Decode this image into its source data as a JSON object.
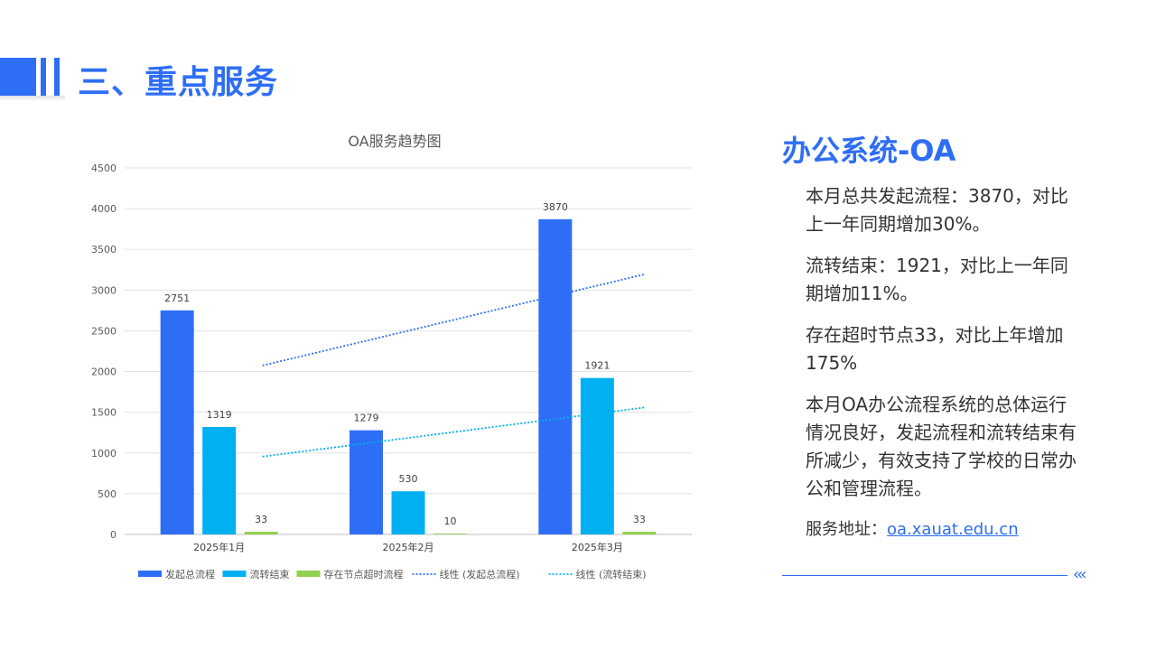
{
  "header": {
    "title": "三、重点服务"
  },
  "side": {
    "title": "办公系统-OA",
    "paragraphs": [
      "本月总共发起流程：3870，对比上一年同期增加30%。",
      "流转结束：1921，对比上一年同期增加11%。",
      "存在超时节点33，对比上年增加175%",
      "本月OA办公流程系统的总体运行情况良好，发起流程和流转结束有所减少，有效支持了学校的日常办公和管理流程。"
    ],
    "address_label": "服务地址：",
    "address_link": "oa.xauat.edu.cn",
    "footer_icon": "double-chevron-left-icon"
  },
  "chart_data": {
    "type": "bar",
    "title": "OA服务趋势图",
    "categories": [
      "2025年1月",
      "2025年2月",
      "2025年3月"
    ],
    "ylim": [
      0,
      4500
    ],
    "yticks": [
      0,
      500,
      1000,
      1500,
      2000,
      2500,
      3000,
      3500,
      4000,
      4500
    ],
    "grid": true,
    "legend_position": "bottom",
    "series": [
      {
        "name": "发起总流程",
        "values": [
          2751,
          1279,
          3870
        ],
        "color": "#2e6ef5"
      },
      {
        "name": "流转结束",
        "values": [
          1319,
          530,
          1921
        ],
        "color": "#00b0f0"
      },
      {
        "name": "存在节点超时流程",
        "values": [
          33,
          10,
          33
        ],
        "color": "#92d050"
      }
    ],
    "trendlines": [
      {
        "name": "线性 (发起总流程)",
        "series": "发起总流程",
        "color": "#2e6ef5"
      },
      {
        "name": "线性 (流转结束)",
        "series": "流转结束",
        "color": "#00b0f0"
      }
    ]
  }
}
